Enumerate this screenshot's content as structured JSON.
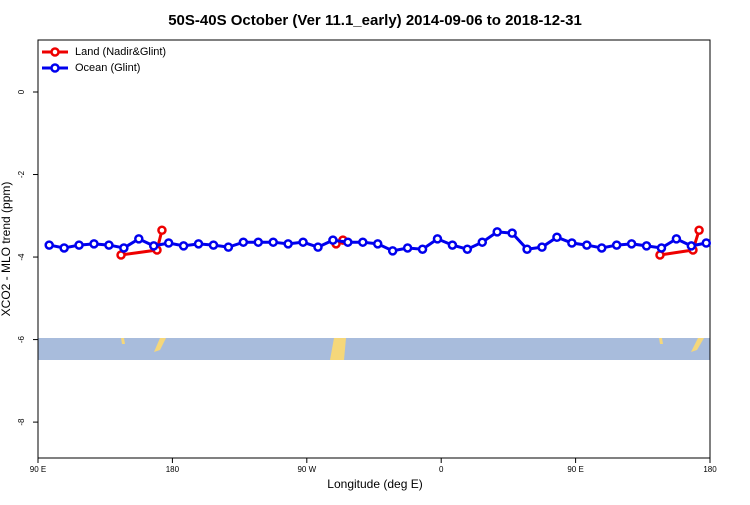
{
  "chart_data": {
    "type": "line",
    "title": "50S-40S October (Ver 11.1_early)   2014-09-06 to 2018-12-31",
    "x_label": "Longitude (deg E)",
    "y_label": "XCO2 - MLO trend (ppm)",
    "xlim": [
      90,
      540
    ],
    "ylim": [
      -8.87,
      1.26
    ],
    "xticks": [
      {
        "value": 90,
        "label": "90 E"
      },
      {
        "value": 180,
        "label": "180"
      },
      {
        "value": 270,
        "label": "90 W"
      },
      {
        "value": 360,
        "label": "0"
      },
      {
        "value": 450,
        "label": "90 E"
      },
      {
        "value": 540,
        "label": "180"
      }
    ],
    "yticks": [
      0,
      -2,
      -4,
      -6,
      -8
    ],
    "legend": "top-left",
    "series": [
      {
        "name": "Land (Nadir&Glint)",
        "color": "#ee0000",
        "x": [
          145.6,
          169.7,
          173,
          null,
          289.6,
          294.2,
          null,
          506.5,
          528.6,
          532.7
        ],
        "values": [
          -3.95,
          -3.83,
          -3.35,
          null,
          -3.68,
          -3.59,
          null,
          -3.95,
          -3.83,
          -3.35
        ]
      },
      {
        "name": "Ocean (Glint)",
        "color": "#0000ee",
        "x": [
          97.5,
          107.5,
          117.5,
          127.5,
          137.5,
          147.5,
          157.5,
          167.5,
          177.5,
          187.5,
          197.5,
          207.5,
          217.5,
          227.5,
          237.5,
          247.5,
          257.5,
          267.5,
          277.5,
          287.5,
          297.5,
          307.5,
          317.5,
          327.5,
          337.5,
          347.5,
          357.5,
          367.5,
          377.5,
          387.5,
          397.5,
          407.5,
          417.5,
          427.5,
          437.5,
          447.5,
          457.5,
          467.5,
          477.5,
          487.5,
          497.5,
          507.5,
          517.5,
          527.5,
          537.5
        ],
        "values": [
          -3.71,
          -3.78,
          -3.71,
          -3.68,
          -3.71,
          -3.78,
          -3.56,
          -3.73,
          -3.66,
          -3.73,
          -3.68,
          -3.71,
          -3.76,
          -3.64,
          -3.64,
          -3.64,
          -3.68,
          -3.64,
          -3.76,
          -3.59,
          -3.64,
          -3.64,
          -3.68,
          -3.85,
          -3.78,
          -3.81,
          -3.56,
          -3.71,
          -3.81,
          -3.64,
          -3.39,
          -3.42,
          -3.81,
          -3.76,
          -3.52,
          -3.66,
          -3.71,
          -3.78,
          -3.71,
          -3.68,
          -3.73,
          -3.78,
          -3.56,
          -3.73,
          -3.66
        ]
      }
    ]
  }
}
